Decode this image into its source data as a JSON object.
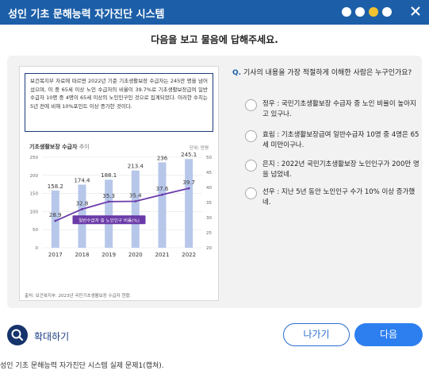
{
  "window": {
    "title": "성인 기초 문해능력 자가진단 시스템",
    "progress_dots": 4,
    "current_dot": 3,
    "accent_color": "#1c5fa8",
    "current_dot_color": "#f2c230",
    "close_icon": "close-icon"
  },
  "instruction": "다음을 보고 물음에 답해주세요.",
  "passage": {
    "text": "보건복지부 자료에 따르면 2022년 기준 기초생활보장 수급자는 245만 명을 넘어섰으며, 이 중 65세 이상 노인 수급자의 비율이 39.7%로 기초생활보장급여 일반수급자 10명 중 4명이 65세 이상의 노인인구인 것으로 집계되었다. 이러한 수치는 5년 전에 비해 10%포인트 이상 증가한 것이다."
  },
  "chart": {
    "title": "기초생활보장 수급자",
    "title_suffix": "추이",
    "unit_label": "단위: 만명",
    "line_label": "일반수급자 중 노인인구 비율(%)",
    "source": "출처: 보건복지부. 2023년 국민기초생활보장 수급자 현황."
  },
  "chart_data": {
    "type": "bar",
    "categories": [
      "2017",
      "2018",
      "2019",
      "2020",
      "2021",
      "2022"
    ],
    "series": [
      {
        "name": "기초생활보장 수급자",
        "type": "bar",
        "axis": "left",
        "values": [
          158.2,
          174.4,
          188.1,
          213.4,
          236,
          245.1
        ]
      },
      {
        "name": "일반수급자 중 노인인구 비율(%)",
        "type": "line",
        "axis": "right",
        "values": [
          28.9,
          32.8,
          35.3,
          35.4,
          37.6,
          39.7
        ]
      }
    ],
    "y_left": {
      "ticks": [
        0,
        50,
        100,
        150,
        200,
        250
      ],
      "range": [
        0,
        250
      ]
    },
    "y_right": {
      "ticks": [
        20,
        25,
        30,
        35,
        40,
        45,
        50
      ],
      "range": [
        20,
        50
      ]
    },
    "bar_color": "#b7c7ea",
    "line_color": "#6a3aa8",
    "grid": true
  },
  "question": {
    "prefix": "Q.",
    "text": "기사의 내용을 가장 적절하게 이해한 사람은 누구인가요?"
  },
  "options": [
    {
      "text": "정우 : 국민기초생활보장 수급자 중 노인 비율이 높아지고 있구나."
    },
    {
      "text": "효림 : 기초생활보장급여 일반수급자 10명 중 4명은 65세 미만이구나."
    },
    {
      "text": "은지 : 2022년 국민기초생활보장 노인인구가 200만 명을 넘었네."
    },
    {
      "text": "선우 : 지난 5년 동안 노인인구 수가 10% 이상 증가했네."
    }
  ],
  "footer": {
    "zoom_label": "확대하기",
    "zoom_icon": "zoom-icon",
    "prev_label": "나가기",
    "next_label": "다음"
  },
  "caption": "성인 기초 문해능력 자가진단 시스템 실제 문제1(캡쳐)."
}
